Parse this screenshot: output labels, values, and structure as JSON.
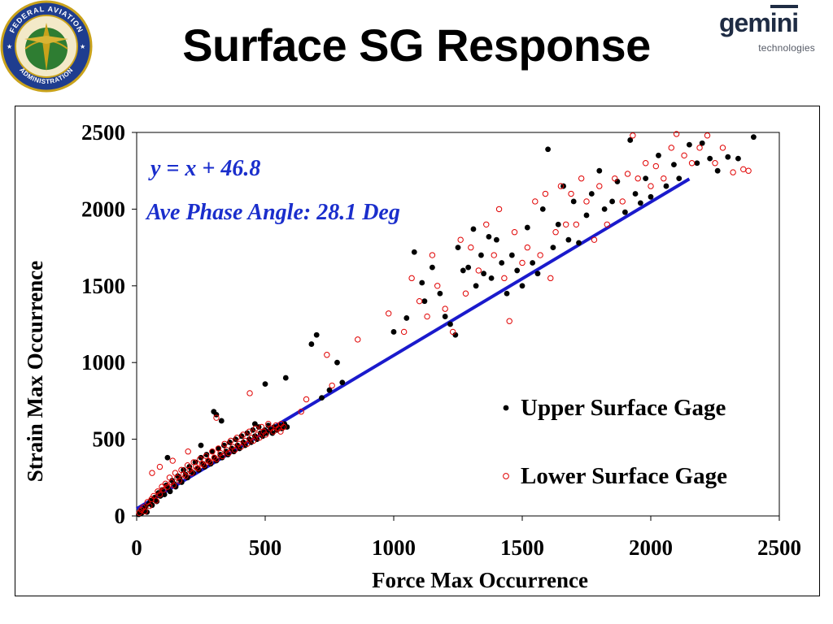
{
  "slide": {
    "title": "Surface SG Response",
    "seal": {
      "text_top": "FEDERAL AVIATION",
      "text_bottom": "ADMINISTRATION",
      "colors": {
        "ring": "#1f3d8f",
        "gold": "#c9a21b",
        "globe": "#2e7d32"
      }
    },
    "logo": {
      "word_main": "gem",
      "word_accent": "ini",
      "subtitle": "technologies",
      "color": "#1f2c44"
    }
  },
  "chart_data": {
    "type": "scatter",
    "xlabel": "Force Max Occurrence",
    "ylabel": "Strain Max Occurrence",
    "xlim": [
      0,
      2500
    ],
    "ylim": [
      0,
      2500
    ],
    "xticks": [
      0,
      500,
      1000,
      1500,
      2000,
      2500
    ],
    "yticks": [
      0,
      500,
      1000,
      1500,
      2000,
      2500
    ],
    "grid": false,
    "legend_position": "bottom-right",
    "annotations": {
      "equation": "y = x + 46.8",
      "phase": "Ave Phase Angle: 28.1 Deg"
    },
    "fit_line": {
      "slope": 1,
      "intercept": 46.8,
      "x_range": [
        0,
        2150
      ],
      "color": "#1a1acc"
    },
    "series": [
      {
        "name": "Upper Surface Gage",
        "marker": "filled-circle",
        "color": "#000000",
        "points": [
          [
            8,
            10
          ],
          [
            14,
            30
          ],
          [
            20,
            20
          ],
          [
            28,
            45
          ],
          [
            35,
            60
          ],
          [
            40,
            25
          ],
          [
            48,
            80
          ],
          [
            55,
            100
          ],
          [
            60,
            70
          ],
          [
            70,
            120
          ],
          [
            78,
            95
          ],
          [
            85,
            150
          ],
          [
            92,
            130
          ],
          [
            100,
            170
          ],
          [
            108,
            140
          ],
          [
            115,
            200
          ],
          [
            122,
            180
          ],
          [
            130,
            160
          ],
          [
            138,
            230
          ],
          [
            145,
            210
          ],
          [
            152,
            190
          ],
          [
            160,
            260
          ],
          [
            168,
            240
          ],
          [
            175,
            220
          ],
          [
            182,
            300
          ],
          [
            190,
            270
          ],
          [
            198,
            250
          ],
          [
            205,
            320
          ],
          [
            212,
            290
          ],
          [
            220,
            280
          ],
          [
            228,
            350
          ],
          [
            235,
            310
          ],
          [
            242,
            300
          ],
          [
            250,
            380
          ],
          [
            258,
            340
          ],
          [
            265,
            320
          ],
          [
            272,
            400
          ],
          [
            280,
            360
          ],
          [
            288,
            340
          ],
          [
            295,
            420
          ],
          [
            302,
            380
          ],
          [
            310,
            360
          ],
          [
            318,
            440
          ],
          [
            325,
            400
          ],
          [
            332,
            380
          ],
          [
            340,
            460
          ],
          [
            348,
            420
          ],
          [
            355,
            400
          ],
          [
            362,
            480
          ],
          [
            370,
            440
          ],
          [
            378,
            420
          ],
          [
            385,
            500
          ],
          [
            392,
            460
          ],
          [
            400,
            440
          ],
          [
            408,
            520
          ],
          [
            415,
            480
          ],
          [
            422,
            460
          ],
          [
            430,
            540
          ],
          [
            438,
            500
          ],
          [
            445,
            480
          ],
          [
            452,
            560
          ],
          [
            460,
            520
          ],
          [
            468,
            500
          ],
          [
            475,
            580
          ],
          [
            482,
            540
          ],
          [
            490,
            520
          ],
          [
            498,
            560
          ],
          [
            505,
            540
          ],
          [
            512,
            590
          ],
          [
            520,
            560
          ],
          [
            528,
            540
          ],
          [
            535,
            580
          ],
          [
            545,
            560
          ],
          [
            555,
            590
          ],
          [
            565,
            570
          ],
          [
            575,
            600
          ],
          [
            585,
            580
          ],
          [
            300,
            680
          ],
          [
            310,
            660
          ],
          [
            330,
            620
          ],
          [
            120,
            380
          ],
          [
            250,
            460
          ],
          [
            460,
            600
          ],
          [
            500,
            860
          ],
          [
            580,
            900
          ],
          [
            680,
            1120
          ],
          [
            700,
            1180
          ],
          [
            750,
            820
          ],
          [
            720,
            770
          ],
          [
            800,
            870
          ],
          [
            780,
            1000
          ],
          [
            1000,
            1200
          ],
          [
            1050,
            1290
          ],
          [
            1080,
            1720
          ],
          [
            1110,
            1520
          ],
          [
            1120,
            1400
          ],
          [
            1150,
            1620
          ],
          [
            1180,
            1450
          ],
          [
            1200,
            1300
          ],
          [
            1220,
            1250
          ],
          [
            1240,
            1180
          ],
          [
            1250,
            1750
          ],
          [
            1270,
            1600
          ],
          [
            1290,
            1620
          ],
          [
            1310,
            1870
          ],
          [
            1320,
            1500
          ],
          [
            1340,
            1700
          ],
          [
            1350,
            1580
          ],
          [
            1370,
            1820
          ],
          [
            1380,
            1550
          ],
          [
            1400,
            1800
          ],
          [
            1420,
            1650
          ],
          [
            1440,
            1450
          ],
          [
            1460,
            1700
          ],
          [
            1480,
            1600
          ],
          [
            1500,
            1500
          ],
          [
            1520,
            1880
          ],
          [
            1540,
            1650
          ],
          [
            1560,
            1580
          ],
          [
            1580,
            2000
          ],
          [
            1600,
            2390
          ],
          [
            1620,
            1750
          ],
          [
            1640,
            1900
          ],
          [
            1660,
            2150
          ],
          [
            1680,
            1800
          ],
          [
            1700,
            2050
          ],
          [
            1720,
            1780
          ],
          [
            1750,
            1960
          ],
          [
            1770,
            2100
          ],
          [
            1800,
            2250
          ],
          [
            1820,
            2000
          ],
          [
            1850,
            2050
          ],
          [
            1870,
            2180
          ],
          [
            1900,
            1980
          ],
          [
            1920,
            2450
          ],
          [
            1940,
            2100
          ],
          [
            1960,
            2040
          ],
          [
            1980,
            2200
          ],
          [
            2000,
            2080
          ],
          [
            2030,
            2350
          ],
          [
            2060,
            2150
          ],
          [
            2090,
            2290
          ],
          [
            2110,
            2200
          ],
          [
            2150,
            2420
          ],
          [
            2180,
            2300
          ],
          [
            2200,
            2430
          ],
          [
            2230,
            2330
          ],
          [
            2260,
            2250
          ],
          [
            2300,
            2340
          ],
          [
            2340,
            2330
          ],
          [
            2400,
            2470
          ]
        ]
      },
      {
        "name": "Lower Surface Gage",
        "marker": "open-circle",
        "color": "#e00000",
        "points": [
          [
            10,
            20
          ],
          [
            18,
            40
          ],
          [
            25,
            55
          ],
          [
            32,
            30
          ],
          [
            42,
            90
          ],
          [
            50,
            65
          ],
          [
            58,
            110
          ],
          [
            66,
            130
          ],
          [
            75,
            100
          ],
          [
            82,
            160
          ],
          [
            90,
            140
          ],
          [
            98,
            190
          ],
          [
            105,
            170
          ],
          [
            112,
            210
          ],
          [
            120,
            190
          ],
          [
            128,
            250
          ],
          [
            136,
            220
          ],
          [
            144,
            200
          ],
          [
            150,
            280
          ],
          [
            158,
            250
          ],
          [
            166,
            230
          ],
          [
            174,
            300
          ],
          [
            182,
            270
          ],
          [
            190,
            260
          ],
          [
            198,
            330
          ],
          [
            206,
            300
          ],
          [
            214,
            280
          ],
          [
            222,
            350
          ],
          [
            230,
            320
          ],
          [
            238,
            310
          ],
          [
            246,
            370
          ],
          [
            254,
            340
          ],
          [
            262,
            330
          ],
          [
            270,
            390
          ],
          [
            278,
            360
          ],
          [
            286,
            350
          ],
          [
            294,
            420
          ],
          [
            302,
            380
          ],
          [
            310,
            370
          ],
          [
            318,
            440
          ],
          [
            326,
            410
          ],
          [
            334,
            390
          ],
          [
            342,
            470
          ],
          [
            350,
            430
          ],
          [
            358,
            410
          ],
          [
            366,
            490
          ],
          [
            374,
            450
          ],
          [
            382,
            430
          ],
          [
            390,
            510
          ],
          [
            398,
            470
          ],
          [
            406,
            450
          ],
          [
            414,
            530
          ],
          [
            422,
            490
          ],
          [
            430,
            470
          ],
          [
            438,
            550
          ],
          [
            446,
            510
          ],
          [
            454,
            490
          ],
          [
            462,
            570
          ],
          [
            470,
            530
          ],
          [
            478,
            510
          ],
          [
            486,
            580
          ],
          [
            494,
            550
          ],
          [
            502,
            530
          ],
          [
            512,
            600
          ],
          [
            522,
            570
          ],
          [
            532,
            550
          ],
          [
            542,
            590
          ],
          [
            552,
            570
          ],
          [
            562,
            600
          ],
          [
            572,
            580
          ],
          [
            60,
            280
          ],
          [
            90,
            320
          ],
          [
            140,
            360
          ],
          [
            200,
            420
          ],
          [
            310,
            640
          ],
          [
            440,
            800
          ],
          [
            560,
            550
          ],
          [
            640,
            680
          ],
          [
            660,
            760
          ],
          [
            740,
            1050
          ],
          [
            760,
            850
          ],
          [
            860,
            1150
          ],
          [
            980,
            1320
          ],
          [
            1040,
            1200
          ],
          [
            1070,
            1550
          ],
          [
            1100,
            1400
          ],
          [
            1130,
            1300
          ],
          [
            1150,
            1700
          ],
          [
            1170,
            1500
          ],
          [
            1200,
            1350
          ],
          [
            1230,
            1200
          ],
          [
            1260,
            1800
          ],
          [
            1280,
            1450
          ],
          [
            1300,
            1750
          ],
          [
            1330,
            1600
          ],
          [
            1360,
            1900
          ],
          [
            1390,
            1700
          ],
          [
            1410,
            2000
          ],
          [
            1430,
            1550
          ],
          [
            1450,
            1270
          ],
          [
            1470,
            1850
          ],
          [
            1500,
            1650
          ],
          [
            1520,
            1750
          ],
          [
            1550,
            2050
          ],
          [
            1570,
            1700
          ],
          [
            1590,
            2100
          ],
          [
            1610,
            1550
          ],
          [
            1630,
            1850
          ],
          [
            1650,
            2150
          ],
          [
            1670,
            1900
          ],
          [
            1690,
            2100
          ],
          [
            1710,
            1900
          ],
          [
            1730,
            2200
          ],
          [
            1750,
            2050
          ],
          [
            1780,
            1800
          ],
          [
            1800,
            2150
          ],
          [
            1830,
            1900
          ],
          [
            1860,
            2200
          ],
          [
            1890,
            2050
          ],
          [
            1910,
            2230
          ],
          [
            1930,
            2480
          ],
          [
            1950,
            2200
          ],
          [
            1980,
            2300
          ],
          [
            2000,
            2150
          ],
          [
            2020,
            2280
          ],
          [
            2050,
            2200
          ],
          [
            2080,
            2400
          ],
          [
            2100,
            2490
          ],
          [
            2130,
            2350
          ],
          [
            2160,
            2300
          ],
          [
            2190,
            2400
          ],
          [
            2220,
            2480
          ],
          [
            2250,
            2300
          ],
          [
            2280,
            2400
          ],
          [
            2320,
            2240
          ],
          [
            2360,
            2260
          ],
          [
            2380,
            2250
          ]
        ]
      }
    ]
  }
}
